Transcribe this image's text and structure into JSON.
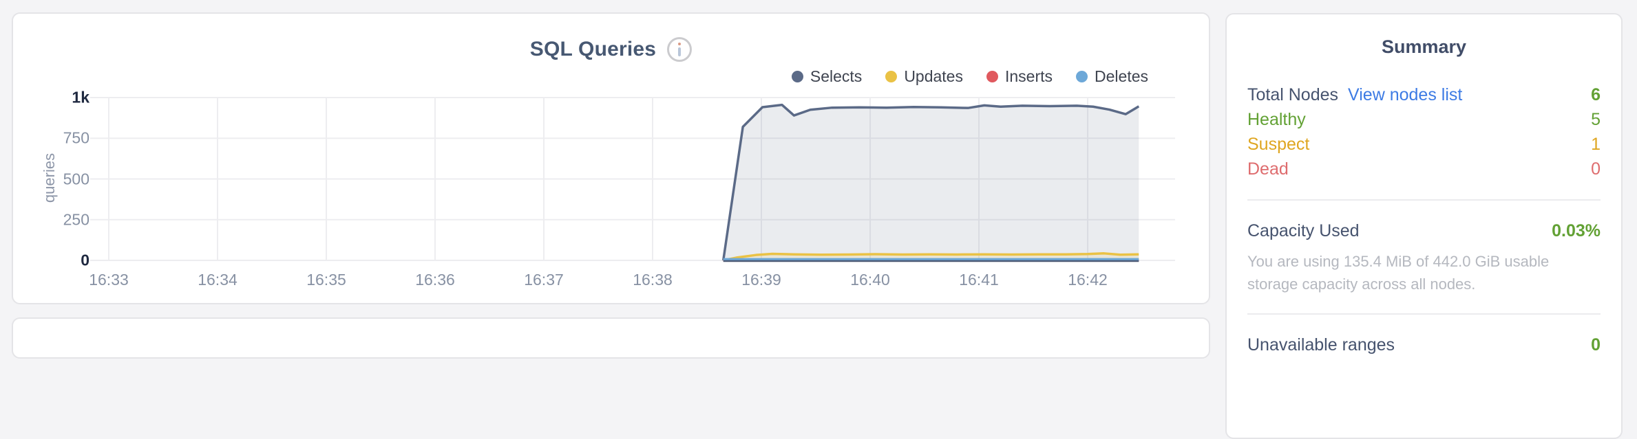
{
  "colors": {
    "dark": "#46536e",
    "green": "#62a134",
    "yellow": "#dfa621",
    "red": "#de6c6e",
    "link": "#3d7be4",
    "muted": "#b5b8bf"
  },
  "chart_data": {
    "type": "area",
    "title": "SQL Queries",
    "ylabel": "queries",
    "ylim": [
      0,
      1000
    ],
    "grid": true,
    "legend_position": "top-right",
    "x_tick_labels": [
      "16:33",
      "16:34",
      "16:35",
      "16:36",
      "16:37",
      "16:38",
      "16:39",
      "16:40",
      "16:41",
      "16:42"
    ],
    "y_ticks": [
      {
        "v": 1000,
        "label": "1k",
        "strong": true
      },
      {
        "v": 750,
        "label": "750"
      },
      {
        "v": 500,
        "label": "500"
      },
      {
        "v": 250,
        "label": "250"
      },
      {
        "v": 0,
        "label": "0",
        "strong": true
      }
    ],
    "x_unit": "minutes after 16:33",
    "axis_line": {
      "from": 5.65,
      "to": 9.47,
      "color": "#4d5a76"
    },
    "series": [
      {
        "name": "Selects",
        "color": "#5b6a87",
        "fill": "rgba(91,106,135,0.13)",
        "points": [
          [
            5.65,
            0
          ],
          [
            5.83,
            820
          ],
          [
            6.01,
            941
          ],
          [
            6.19,
            955
          ],
          [
            6.3,
            890
          ],
          [
            6.45,
            925
          ],
          [
            6.65,
            938
          ],
          [
            6.9,
            940
          ],
          [
            7.15,
            938
          ],
          [
            7.4,
            942
          ],
          [
            7.65,
            940
          ],
          [
            7.9,
            936
          ],
          [
            8.05,
            952
          ],
          [
            8.2,
            944
          ],
          [
            8.4,
            950
          ],
          [
            8.65,
            947
          ],
          [
            8.9,
            950
          ],
          [
            9.05,
            944
          ],
          [
            9.2,
            926
          ],
          [
            9.35,
            898
          ],
          [
            9.47,
            946
          ]
        ]
      },
      {
        "name": "Updates",
        "color": "#eac245",
        "fill": "rgba(234,194,69,0.15)",
        "points": [
          [
            5.65,
            0
          ],
          [
            5.78,
            18
          ],
          [
            5.95,
            33
          ],
          [
            6.1,
            40
          ],
          [
            6.3,
            37
          ],
          [
            6.55,
            35
          ],
          [
            6.8,
            36
          ],
          [
            7.05,
            38
          ],
          [
            7.3,
            36
          ],
          [
            7.55,
            37
          ],
          [
            7.8,
            36
          ],
          [
            8.05,
            37
          ],
          [
            8.3,
            36
          ],
          [
            8.55,
            37
          ],
          [
            8.8,
            37
          ],
          [
            9.0,
            39
          ],
          [
            9.15,
            43
          ],
          [
            9.3,
            35
          ],
          [
            9.47,
            37
          ]
        ]
      },
      {
        "name": "Inserts",
        "color": "#e0595e",
        "points": [
          [
            5.65,
            0
          ],
          [
            9.47,
            0
          ]
        ]
      },
      {
        "name": "Deletes",
        "color": "#6da8d8",
        "points": [
          [
            5.65,
            7
          ],
          [
            9.47,
            7
          ]
        ]
      }
    ]
  },
  "summary": {
    "title": "Summary",
    "rows": [
      {
        "label": "Total Nodes",
        "link": "View nodes list",
        "value": "6"
      },
      {
        "label": "Healthy",
        "value": "5"
      },
      {
        "label": "Suspect",
        "value": "1"
      },
      {
        "label": "Dead",
        "value": "0"
      }
    ],
    "capacity": {
      "label": "Capacity Used",
      "value": "0.03%",
      "description": "You are using 135.4 MiB of 442.0 GiB usable storage capacity across all nodes."
    },
    "unavailable": {
      "label": "Unavailable ranges",
      "value": "0"
    }
  }
}
